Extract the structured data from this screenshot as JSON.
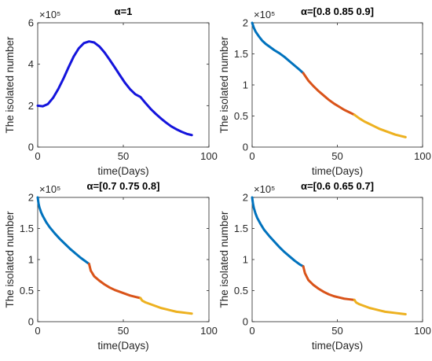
{
  "chart_data": [
    {
      "type": "line",
      "title": "α=1",
      "xlabel": "time(Days)",
      "ylabel": "The isolated number",
      "y_multiplier_label": "×10⁵",
      "xlim": [
        0,
        100
      ],
      "ylim": [
        0,
        6
      ],
      "xticks": [
        0,
        50,
        100
      ],
      "yticks": [
        0,
        2,
        4,
        6
      ],
      "tick_labels_x": [
        "0",
        "50",
        "100"
      ],
      "tick_labels_y": [
        "0",
        "2",
        "4",
        "6"
      ],
      "series": [
        {
          "color": "#1414dc",
          "x": [
            0,
            3,
            6,
            9,
            12,
            15,
            18,
            21,
            24,
            27,
            30,
            33,
            36,
            39,
            42,
            45,
            48,
            51,
            54,
            57,
            60,
            63,
            66,
            69,
            72,
            75,
            78,
            81,
            84,
            87,
            90
          ],
          "y": [
            2.0,
            1.97,
            2.08,
            2.38,
            2.8,
            3.3,
            3.85,
            4.37,
            4.77,
            5.02,
            5.1,
            5.05,
            4.86,
            4.57,
            4.22,
            3.85,
            3.47,
            3.1,
            2.79,
            2.55,
            2.42,
            2.12,
            1.84,
            1.6,
            1.38,
            1.18,
            1.0,
            0.86,
            0.74,
            0.64,
            0.58
          ]
        }
      ]
    },
    {
      "type": "line",
      "title": "α=[0.8 0.85 0.9]",
      "xlabel": "time(Days)",
      "ylabel": "The isolated number",
      "y_multiplier_label": "×10⁵",
      "xlim": [
        0,
        100
      ],
      "ylim": [
        0,
        2
      ],
      "xticks": [
        0,
        50,
        100
      ],
      "yticks": [
        0,
        0.5,
        1,
        1.5,
        2
      ],
      "tick_labels_x": [
        "0",
        "50",
        "100"
      ],
      "tick_labels_y": [
        "0",
        "0.5",
        "1",
        "1.5",
        "2"
      ],
      "series": [
        {
          "color": "#0072bd",
          "x": [
            0,
            1,
            2,
            4,
            6,
            8,
            10,
            13,
            16,
            19,
            22,
            25,
            28,
            30
          ],
          "y": [
            2.0,
            1.92,
            1.86,
            1.78,
            1.71,
            1.66,
            1.62,
            1.56,
            1.51,
            1.45,
            1.38,
            1.31,
            1.24,
            1.19
          ]
        },
        {
          "color": "#d95319",
          "x": [
            30,
            33,
            36,
            39,
            42,
            45,
            48,
            51,
            54,
            57,
            60
          ],
          "y": [
            1.19,
            1.07,
            0.98,
            0.9,
            0.83,
            0.76,
            0.7,
            0.65,
            0.6,
            0.56,
            0.52
          ]
        },
        {
          "color": "#edb120",
          "x": [
            60,
            63,
            66,
            69,
            72,
            75,
            78,
            81,
            84,
            87,
            90
          ],
          "y": [
            0.52,
            0.46,
            0.41,
            0.37,
            0.33,
            0.29,
            0.26,
            0.23,
            0.2,
            0.18,
            0.16
          ]
        }
      ]
    },
    {
      "type": "line",
      "title": "α=[0.7 0.75 0.8]",
      "xlabel": "time(Days)",
      "ylabel": "The isolated number",
      "y_multiplier_label": "×10⁵",
      "xlim": [
        0,
        100
      ],
      "ylim": [
        0,
        2
      ],
      "xticks": [
        0,
        50,
        100
      ],
      "yticks": [
        0,
        0.5,
        1,
        1.5,
        2
      ],
      "tick_labels_x": [
        "0",
        "50",
        "100"
      ],
      "tick_labels_y": [
        "0",
        "0.5",
        "1",
        "1.5",
        "2"
      ],
      "series": [
        {
          "color": "#0072bd",
          "x": [
            0,
            0.5,
            1,
            2,
            3,
            5,
            7,
            10,
            13,
            16,
            19,
            22,
            25,
            28,
            30
          ],
          "y": [
            2.0,
            1.9,
            1.84,
            1.76,
            1.7,
            1.6,
            1.52,
            1.42,
            1.33,
            1.25,
            1.17,
            1.1,
            1.03,
            0.97,
            0.93
          ]
        },
        {
          "color": "#d95319",
          "x": [
            30,
            31,
            33,
            36,
            39,
            42,
            45,
            48,
            51,
            54,
            57,
            60
          ],
          "y": [
            0.93,
            0.82,
            0.73,
            0.66,
            0.6,
            0.55,
            0.51,
            0.48,
            0.45,
            0.42,
            0.4,
            0.38
          ]
        },
        {
          "color": "#edb120",
          "x": [
            60,
            61,
            63,
            66,
            69,
            72,
            75,
            78,
            81,
            84,
            87,
            90
          ],
          "y": [
            0.38,
            0.34,
            0.31,
            0.28,
            0.25,
            0.22,
            0.2,
            0.18,
            0.16,
            0.15,
            0.14,
            0.13
          ]
        }
      ]
    },
    {
      "type": "line",
      "title": "α=[0.6 0.65 0.7]",
      "xlabel": "time(Days)",
      "ylabel": "The isolated number",
      "y_multiplier_label": "×10⁵",
      "xlim": [
        0,
        100
      ],
      "ylim": [
        0,
        2
      ],
      "xticks": [
        0,
        50,
        100
      ],
      "yticks": [
        0,
        0.5,
        1,
        1.5,
        2
      ],
      "tick_labels_x": [
        "0",
        "50",
        "100"
      ],
      "tick_labels_y": [
        "0",
        "0.5",
        "1",
        "1.5",
        "2"
      ],
      "series": [
        {
          "color": "#0072bd",
          "x": [
            0,
            0.5,
            1,
            2,
            3,
            5,
            7,
            10,
            13,
            16,
            19,
            22,
            25,
            28,
            30
          ],
          "y": [
            2.0,
            1.9,
            1.83,
            1.74,
            1.67,
            1.57,
            1.48,
            1.38,
            1.29,
            1.2,
            1.12,
            1.05,
            0.98,
            0.92,
            0.89
          ]
        },
        {
          "color": "#d95319",
          "x": [
            30,
            31,
            33,
            36,
            39,
            42,
            45,
            48,
            51,
            54,
            57,
            60
          ],
          "y": [
            0.89,
            0.78,
            0.67,
            0.59,
            0.53,
            0.48,
            0.44,
            0.41,
            0.39,
            0.37,
            0.36,
            0.35
          ]
        },
        {
          "color": "#edb120",
          "x": [
            60,
            61,
            63,
            66,
            69,
            72,
            75,
            78,
            81,
            84,
            87,
            90
          ],
          "y": [
            0.35,
            0.31,
            0.28,
            0.25,
            0.22,
            0.2,
            0.18,
            0.16,
            0.15,
            0.14,
            0.13,
            0.12
          ]
        }
      ]
    }
  ]
}
